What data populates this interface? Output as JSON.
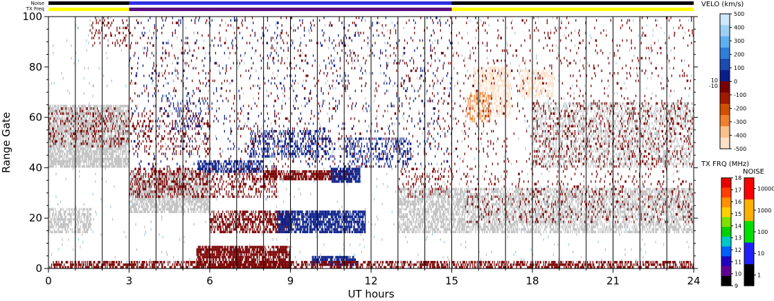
{
  "status_bars": {
    "noise_label": "Noise",
    "txfreq_label": "TX Freq"
  },
  "chart_data": {
    "type": "heatmap",
    "xlabel": "UT hours",
    "ylabel": "Range Gate",
    "xlim": [
      0,
      24
    ],
    "ylim": [
      0,
      100
    ],
    "x_ticks": [
      "0",
      "3",
      "6",
      "9",
      "12",
      "15",
      "18",
      "21",
      "24"
    ],
    "y_ticks": [
      "0",
      "20",
      "40",
      "60",
      "80",
      "100"
    ],
    "grid": "vertical lines every hour",
    "velocity_colorbar": {
      "title": "VELO (km/s)",
      "ticks": [
        "500",
        "400",
        "300",
        "200",
        "100",
        "0",
        "-100",
        "-200",
        "-300",
        "-400",
        "-500"
      ],
      "gap_labels": [
        "10",
        "-10"
      ],
      "colors": [
        "#cfe8ff",
        "#9dd0f5",
        "#5fb0ee",
        "#2f7fd8",
        "#1c4bb0",
        "#0b1f8a",
        "#7a0000",
        "#a01a00",
        "#d05000",
        "#f08030",
        "#f9c08a",
        "#fde0c8"
      ]
    },
    "txfreq_colorbar": {
      "title": "TX FRQ (MHz)",
      "ticks": [
        "18",
        "17",
        "16",
        "15",
        "14",
        "13",
        "12",
        "11",
        "10",
        "9"
      ],
      "colors": [
        "#e60000",
        "#ff4000",
        "#ff9000",
        "#ffd000",
        "#80e000",
        "#00d000",
        "#00c8c8",
        "#0060ff",
        "#2000c0",
        "#600090",
        "#000000"
      ]
    },
    "noise_colorbar": {
      "title": "NOISE",
      "ticks": [
        "10000",
        "1000",
        "100",
        "10",
        "1"
      ],
      "colors": [
        "#ff0000",
        "#ffb000",
        "#00e000",
        "#2020ff",
        "#000000"
      ]
    },
    "status": {
      "noise_segments": [
        [
          0,
          3,
          "#000000"
        ],
        [
          3,
          15,
          "#3030e0"
        ],
        [
          15,
          24,
          "#000000"
        ]
      ],
      "txfreq_segments": [
        [
          0,
          3,
          "#ffff00"
        ],
        [
          3,
          15,
          "#5a1080"
        ],
        [
          15,
          24,
          "#ffff00"
        ]
      ]
    },
    "bands": [
      {
        "t0": 0.0,
        "t1": 3.0,
        "g0": 40,
        "g1": 65,
        "color": "#c0c0c0",
        "density": 0.75
      },
      {
        "t0": 0.0,
        "t1": 3.0,
        "g0": 48,
        "g1": 64,
        "color": "#7a0000",
        "density": 0.2
      },
      {
        "t0": 0.0,
        "t1": 1.6,
        "g0": 14,
        "g1": 24,
        "color": "#c0c0c0",
        "density": 0.55
      },
      {
        "t0": 1.5,
        "t1": 3.0,
        "g0": 88,
        "g1": 100,
        "color": "#7a0000",
        "density": 0.12
      },
      {
        "t0": 3.0,
        "t1": 6.0,
        "g0": 22,
        "g1": 38,
        "color": "#c0c0c0",
        "density": 0.7
      },
      {
        "t0": 3.0,
        "t1": 8.5,
        "g0": 28,
        "g1": 40,
        "color": "#7a0000",
        "density": 0.35
      },
      {
        "t0": 3.0,
        "t1": 6.0,
        "g0": 45,
        "g1": 62,
        "color": "#7a0000",
        "density": 0.12
      },
      {
        "t0": 4.0,
        "t1": 6.0,
        "g0": 55,
        "g1": 70,
        "color": "#0b1f8a",
        "density": 0.1
      },
      {
        "t0": 5.5,
        "t1": 8.0,
        "g0": 38,
        "g1": 43,
        "color": "#0b1f8a",
        "density": 0.55
      },
      {
        "t0": 8.0,
        "t1": 11.3,
        "g0": 35,
        "g1": 39,
        "color": "#7a0000",
        "density": 0.7
      },
      {
        "t0": 10.5,
        "t1": 11.6,
        "g0": 34,
        "g1": 40,
        "color": "#0b1f8a",
        "density": 0.8
      },
      {
        "t0": 6.0,
        "t1": 9.0,
        "g0": 14,
        "g1": 23,
        "color": "#7a0000",
        "density": 0.55
      },
      {
        "t0": 8.5,
        "t1": 11.8,
        "g0": 14,
        "g1": 23,
        "color": "#0b1f8a",
        "density": 0.8
      },
      {
        "t0": 5.5,
        "t1": 9.0,
        "g0": 0,
        "g1": 9,
        "color": "#7a0000",
        "density": 0.8
      },
      {
        "t0": 9.8,
        "t1": 11.5,
        "g0": 1,
        "g1": 5,
        "color": "#0b1f8a",
        "density": 0.7
      },
      {
        "t0": 0.0,
        "t1": 24.0,
        "g0": 0,
        "g1": 3,
        "color": "#7a0000",
        "density": 0.55
      },
      {
        "t0": 7.5,
        "t1": 10.5,
        "g0": 44,
        "g1": 55,
        "color": "#0b1f8a",
        "density": 0.35
      },
      {
        "t0": 11.0,
        "t1": 13.5,
        "g0": 40,
        "g1": 52,
        "color": "#0b1f8a",
        "density": 0.3
      },
      {
        "t0": 13.0,
        "t1": 15.0,
        "g0": 28,
        "g1": 40,
        "color": "#7a0000",
        "density": 0.2
      },
      {
        "t0": 13.0,
        "t1": 15.5,
        "g0": 14,
        "g1": 32,
        "color": "#c0c0c0",
        "density": 0.6
      },
      {
        "t0": 15.5,
        "t1": 24.0,
        "g0": 14,
        "g1": 32,
        "color": "#c0c0c0",
        "density": 0.55
      },
      {
        "t0": 15.5,
        "t1": 24.0,
        "g0": 18,
        "g1": 35,
        "color": "#7a0000",
        "density": 0.12
      },
      {
        "t0": 18.0,
        "t1": 24.0,
        "g0": 40,
        "g1": 66,
        "color": "#c0c0c0",
        "density": 0.35
      },
      {
        "t0": 18.0,
        "t1": 24.0,
        "g0": 40,
        "g1": 66,
        "color": "#7a0000",
        "density": 0.1
      },
      {
        "t0": 15.8,
        "t1": 17.2,
        "g0": 60,
        "g1": 80,
        "color": "#fde0c8",
        "density": 0.55
      },
      {
        "t0": 15.5,
        "t1": 16.5,
        "g0": 58,
        "g1": 70,
        "color": "#f08030",
        "density": 0.3
      },
      {
        "t0": 17.5,
        "t1": 18.8,
        "g0": 68,
        "g1": 79,
        "color": "#fde0c8",
        "density": 0.55
      },
      {
        "t0": 3.0,
        "t1": 15.0,
        "g0": 40,
        "g1": 100,
        "color": "#7a0000",
        "density": 0.04
      },
      {
        "t0": 3.0,
        "t1": 15.0,
        "g0": 40,
        "g1": 100,
        "color": "#0b1f8a",
        "density": 0.03
      },
      {
        "t0": 15.0,
        "t1": 24.0,
        "g0": 35,
        "g1": 100,
        "color": "#7a0000",
        "density": 0.04
      },
      {
        "t0": 0.0,
        "t1": 24.0,
        "g0": 0,
        "g1": 100,
        "color": "#9dd0f5",
        "density": 0.004
      },
      {
        "t0": 0.0,
        "t1": 24.0,
        "g0": 0,
        "g1": 100,
        "color": "#c0c0c0",
        "density": 0.01
      }
    ]
  }
}
